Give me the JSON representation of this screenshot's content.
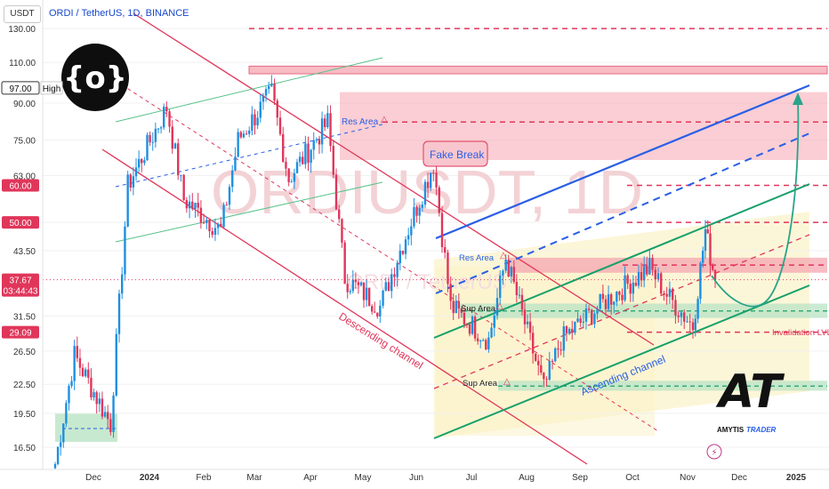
{
  "header": {
    "currency": "USDT",
    "title": "ORDI / TetherUS, 1D, BINANCE"
  },
  "watermark": {
    "line1": "ORDIUSDT, 1D",
    "line2": "ORDI / TetherUS"
  },
  "colors": {
    "up": "#1f8fe0",
    "down": "#e0365a",
    "descending": "#e0365a",
    "ascending": "#18a06a",
    "blue_channel": "#2a5ee6",
    "res_band": "#f5a6b0",
    "sup_band": "#b9e3c4",
    "projection": "#2aa38a"
  },
  "chart_data": {
    "type": "candlestick",
    "title": "ORDI / TetherUS, 1D, BINANCE",
    "symbol": "ORDIUSDT",
    "timeframe": "1D",
    "exchange": "BINANCE",
    "quote_currency": "USDT",
    "y_scale": "log",
    "x_tick_labels": [
      "Dec",
      "2024",
      "Feb",
      "Mar",
      "Apr",
      "May",
      "Jun",
      "Jul",
      "Aug",
      "Sep",
      "Oct",
      "Nov",
      "Dec",
      "2025"
    ],
    "y_tick_labels": [
      "16.50",
      "19.50",
      "22.50",
      "26.50",
      "31.50",
      "43.50",
      "50.00",
      "63.00",
      "75.00",
      "90.00",
      "110.00",
      "130.00"
    ],
    "price_badges": [
      {
        "label": "97.00",
        "y": 97,
        "tag": "High",
        "style": "outline"
      },
      {
        "label": "60.00",
        "y": 60,
        "style": "red"
      },
      {
        "label": "50.00",
        "y": 50,
        "style": "red"
      },
      {
        "label": "37.67",
        "y": 37.67,
        "sub": "03:44:43",
        "style": "red"
      },
      {
        "label": "29.09",
        "y": 29.09,
        "style": "red"
      }
    ],
    "key_points": [
      {
        "x": "Nov 2023",
        "y": 15.2
      },
      {
        "x": "Nov 2023",
        "y": 26
      },
      {
        "x": "Dec 2023",
        "y": 18.5
      },
      {
        "x": "Dec 2023",
        "y": 60
      },
      {
        "x": "Jan 2024",
        "y": 88
      },
      {
        "x": "Jan 2024",
        "y": 56
      },
      {
        "x": "Feb 2024",
        "y": 48
      },
      {
        "x": "Feb 2024",
        "y": 75
      },
      {
        "x": "Mar 2024",
        "y": 95
      },
      {
        "x": "Mar 2024",
        "y": 62
      },
      {
        "x": "Apr 2024",
        "y": 82
      },
      {
        "x": "Apr 2024",
        "y": 38
      },
      {
        "x": "May 2024",
        "y": 33
      },
      {
        "x": "May 2024",
        "y": 42
      },
      {
        "x": "Jun 2024",
        "y": 67
      },
      {
        "x": "Jun 2024",
        "y": 33
      },
      {
        "x": "Jul 2024",
        "y": 28
      },
      {
        "x": "Jul 2024",
        "y": 42
      },
      {
        "x": "Aug 2024",
        "y": 22
      },
      {
        "x": "Aug 2024",
        "y": 28
      },
      {
        "x": "Sep 2024",
        "y": 34
      },
      {
        "x": "Oct 2024",
        "y": 40
      },
      {
        "x": "Oct 2024",
        "y": 35
      },
      {
        "x": "Nov 2024",
        "y": 30
      },
      {
        "x": "Nov 2024",
        "y": 48
      },
      {
        "x": "Nov 2024",
        "y": 37.67
      }
    ],
    "bands": [
      {
        "name": "top-res",
        "y_low": 104,
        "y_high": 108
      },
      {
        "name": "res-zone",
        "y_low": 68,
        "y_high": 95
      },
      {
        "name": "res-mid",
        "y_low": 39,
        "y_high": 42
      },
      {
        "name": "sup-mid",
        "y_low": 31.2,
        "y_high": 33.5
      },
      {
        "name": "sup-low",
        "y_low": 21.8,
        "y_high": 22.9
      }
    ],
    "levels": [
      60,
      50,
      29.09
    ],
    "annotations": [
      {
        "text": "Res Area",
        "x": "Apr 2024",
        "y": 80
      },
      {
        "text": "Fake Break",
        "x": "Jun 2024",
        "y": 68
      },
      {
        "text": "Res Area",
        "x": "Jul 2024",
        "y": 41
      },
      {
        "text": "Sup Area",
        "x": "Jul 2024",
        "y": 32.3
      },
      {
        "text": "Sup Area",
        "x": "Jul 2024",
        "y": 22.3
      },
      {
        "text": "Descending channel",
        "x": "Apr 2024",
        "y": 26
      },
      {
        "text": "Ascending channel",
        "x": "Sep 2024",
        "y": 22.3
      },
      {
        "text": "Invalidation LVL",
        "x": "Dec 2024",
        "y": 29.09
      }
    ],
    "logo_text": {
      "initials": "AT",
      "name_1": "AMYTIS",
      "name_2": "TRADER"
    }
  }
}
